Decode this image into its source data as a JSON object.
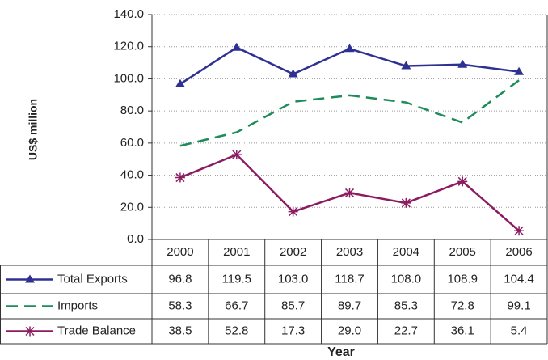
{
  "chart_data": {
    "type": "line",
    "x_label": "Year",
    "y_label": "US$ million",
    "categories": [
      "2000",
      "2001",
      "2002",
      "2003",
      "2004",
      "2005",
      "2006"
    ],
    "series": [
      {
        "name": "Total Exports",
        "color": "#2e3192",
        "marker": "triangle",
        "line_style": "solid",
        "values": [
          96.8,
          119.5,
          103.0,
          118.7,
          108.0,
          108.9,
          104.4
        ],
        "value_labels": [
          "96.8",
          "119.5",
          "103.0",
          "118.7",
          "108.0",
          "108.9",
          "104.4"
        ]
      },
      {
        "name": "Imports",
        "color": "#1e8c5a",
        "marker": "none",
        "line_style": "dashed",
        "values": [
          58.3,
          66.7,
          85.7,
          89.7,
          85.3,
          72.8,
          99.1
        ],
        "value_labels": [
          "58.3",
          "66.7",
          "85.7",
          "89.7",
          "85.3",
          "72.8",
          "99.1"
        ]
      },
      {
        "name": "Trade Balance",
        "color": "#8b1c62",
        "marker": "star",
        "line_style": "solid",
        "values": [
          38.5,
          52.8,
          17.3,
          29.0,
          22.7,
          36.1,
          5.4
        ],
        "value_labels": [
          "38.5",
          "52.8",
          "17.3",
          "29.0",
          "22.7",
          "36.1",
          "5.4"
        ]
      }
    ],
    "ylim": [
      0,
      140
    ],
    "yticks": [
      {
        "value": 0,
        "label": "0.0"
      },
      {
        "value": 20,
        "label": "20.0"
      },
      {
        "value": 40,
        "label": "40.0"
      },
      {
        "value": 60,
        "label": "60.0"
      },
      {
        "value": 80,
        "label": "80.0"
      },
      {
        "value": 100,
        "label": "100.0"
      },
      {
        "value": 120,
        "label": "120.0"
      },
      {
        "value": 140,
        "label": "140.0"
      }
    ],
    "grid": true
  }
}
